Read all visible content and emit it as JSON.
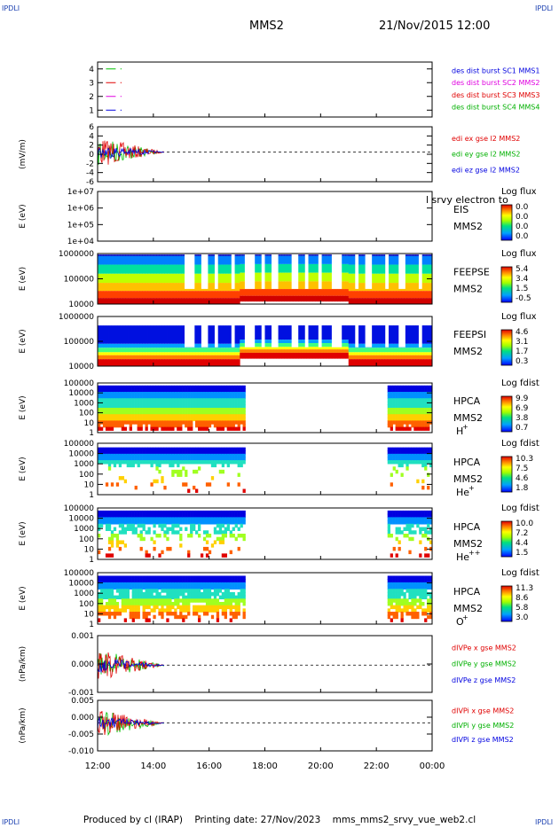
{
  "corners": {
    "tl": "IPDLI",
    "tr": "IPDLI",
    "bl": "IPDLI",
    "br": "IPDLI"
  },
  "header": {
    "spacecraft": "MMS2",
    "datetime": "21/Nov/2015 12:00"
  },
  "footer": {
    "produced_by": "Produced by cl (IRAP)",
    "printing_date": "Printing date: 27/Nov/2023",
    "script": "mms_mms2_srvy_vue_web2.cl"
  },
  "colors": {
    "red": "#e00000",
    "green": "#00c000",
    "blue": "#0000e0",
    "magenta": "#e000e0",
    "label_green": "#00b000"
  },
  "xaxis": {
    "ticks": [
      "12:00",
      "14:00",
      "16:00",
      "18:00",
      "20:00",
      "22:00",
      "00:00"
    ]
  },
  "chart_data": [
    {
      "type": "line",
      "panel": "des-dist-burst",
      "yticks": [
        "1",
        "2",
        "3",
        "4"
      ],
      "legend": [
        {
          "text": "des dist burst SC1 MMS1",
          "color": "#0000e0"
        },
        {
          "text": "des dist burst SC2 MMS2",
          "color": "#e000e0"
        },
        {
          "text": "des dist burst SC3 MMS3",
          "color": "#e00000"
        },
        {
          "text": "des dist burst SC4 MMS4",
          "color": "#00b000"
        }
      ]
    },
    {
      "type": "line",
      "panel": "edi-e-field",
      "ylabel": "(mV/m)",
      "yticks": [
        "6",
        "4",
        "2",
        "0",
        "-2",
        "-4",
        "-6"
      ],
      "legend": [
        {
          "text": "edi ex gse l2 MMS2",
          "color": "#e00000"
        },
        {
          "text": "edi ey gse l2 MMS2",
          "color": "#00b000"
        },
        {
          "text": "edi ez gse l2 MMS2",
          "color": "#0000e0"
        }
      ]
    },
    {
      "type": "heatmap",
      "panel": "eis",
      "ylabel": "E (eV)",
      "yticks": [
        "1e+07",
        "1e+06",
        "1e+05",
        "1e+04"
      ],
      "instrument": "EIS",
      "spacecraft": "MMS2",
      "overlay_text": "l srvy electron to",
      "colorbar": {
        "title": "Log flux",
        "labels": [
          "0.0",
          "0.0",
          "0.0",
          "0.0"
        ]
      }
    },
    {
      "type": "heatmap",
      "panel": "feepse",
      "ylabel": "E (eV)",
      "yticks": [
        "1000000",
        "100000",
        "10000"
      ],
      "instrument": "FEEPSE",
      "spacecraft": "MMS2",
      "colorbar": {
        "title": "Log flux",
        "labels": [
          "5.4",
          "3.4",
          "1.5",
          "-0.5"
        ]
      }
    },
    {
      "type": "heatmap",
      "panel": "feepsi",
      "ylabel": "E (eV)",
      "yticks": [
        "1000000",
        "100000",
        "10000"
      ],
      "instrument": "FEEPSI",
      "spacecraft": "MMS2",
      "colorbar": {
        "title": "Log flux",
        "labels": [
          "4.6",
          "3.1",
          "1.7",
          "0.3"
        ]
      }
    },
    {
      "type": "heatmap",
      "panel": "hpca-h",
      "ylabel": "E (eV)",
      "yticks": [
        "100000",
        "10000",
        "1000",
        "100",
        "10",
        "1"
      ],
      "instrument": "HPCA",
      "spacecraft": "MMS2",
      "species": "H",
      "charge": "+",
      "colorbar": {
        "title": "Log fdist",
        "labels": [
          "9.9",
          "6.9",
          "3.8",
          "0.7"
        ]
      }
    },
    {
      "type": "heatmap",
      "panel": "hpca-he",
      "ylabel": "E (eV)",
      "yticks": [
        "100000",
        "10000",
        "1000",
        "100",
        "10",
        "1"
      ],
      "instrument": "HPCA",
      "spacecraft": "MMS2",
      "species": "He",
      "charge": "+",
      "colorbar": {
        "title": "Log fdist",
        "labels": [
          "10.3",
          "7.5",
          "4.6",
          "1.8"
        ]
      }
    },
    {
      "type": "heatmap",
      "panel": "hpca-he2",
      "ylabel": "E (eV)",
      "yticks": [
        "100000",
        "10000",
        "1000",
        "100",
        "10",
        "1"
      ],
      "instrument": "HPCA",
      "spacecraft": "MMS2",
      "species": "He",
      "charge": "++",
      "colorbar": {
        "title": "Log fdist",
        "labels": [
          "10.0",
          "7.2",
          "4.4",
          "1.5"
        ]
      }
    },
    {
      "type": "heatmap",
      "panel": "hpca-o",
      "ylabel": "E (eV)",
      "yticks": [
        "100000",
        "10000",
        "1000",
        "100",
        "10",
        "1"
      ],
      "instrument": "HPCA",
      "spacecraft": "MMS2",
      "species": "O",
      "charge": "+",
      "colorbar": {
        "title": "Log fdist",
        "labels": [
          "11.3",
          "8.6",
          "5.8",
          "3.0"
        ]
      }
    },
    {
      "type": "line",
      "panel": "divpe",
      "ylabel": "(nPa/km)",
      "yticks": [
        "0.001",
        "0.000",
        "-0.001"
      ],
      "legend": [
        {
          "text": "dIVPe x gse MMS2",
          "color": "#e00000"
        },
        {
          "text": "dIVPe y gse MMS2",
          "color": "#00b000"
        },
        {
          "text": "dIVPe z gse MMS2",
          "color": "#0000e0"
        }
      ]
    },
    {
      "type": "line",
      "panel": "divpi",
      "ylabel": "(nPa/km)",
      "yticks": [
        "0.005",
        "0.000",
        "-0.005",
        "-0.010"
      ],
      "legend": [
        {
          "text": "dIVPi x gse MMS2",
          "color": "#e00000"
        },
        {
          "text": "dIVPi y gse MMS2",
          "color": "#00b000"
        },
        {
          "text": "dIVPi z gse MMS2",
          "color": "#0000e0"
        }
      ]
    }
  ]
}
